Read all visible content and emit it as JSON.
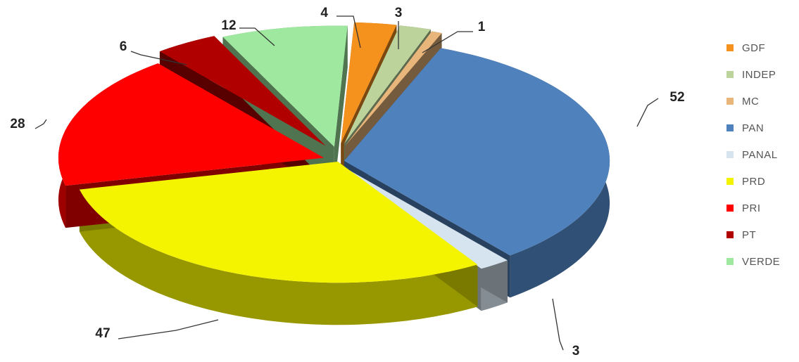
{
  "chart_data": {
    "type": "pie",
    "title": "",
    "legend_position": "right",
    "categories": [
      "GDF",
      "INDEP",
      "MC",
      "PAN",
      "PANAL",
      "PRD",
      "PRI",
      "PT",
      "VERDE"
    ],
    "values": [
      4,
      3,
      1,
      52,
      3,
      47,
      28,
      6,
      12
    ],
    "data_labels": [
      "4",
      "3",
      "1",
      "52",
      "3",
      "47",
      "28",
      "6",
      "12"
    ],
    "colors": [
      "#f5921e",
      "#bcd39c",
      "#e8b67a",
      "#4f81bd",
      "#d6e4ef",
      "#f4f400",
      "#ff0000",
      "#b00000",
      "#9fe89f"
    ]
  }
}
